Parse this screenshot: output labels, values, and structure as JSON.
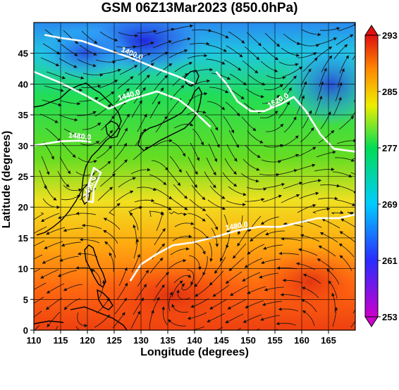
{
  "title": "GSM 06Z13Mar2023 (850.0hPa)",
  "chart_data": {
    "type": "map",
    "xlabel": "Longitude (degrees)",
    "ylabel": "Latitude  (degrees)",
    "xlim": [
      110,
      170
    ],
    "ylim": [
      0,
      50
    ],
    "x_ticks": [
      110,
      115,
      120,
      125,
      130,
      135,
      140,
      145,
      150,
      155,
      160,
      165
    ],
    "y_ticks": [
      0,
      5,
      10,
      15,
      20,
      25,
      30,
      35,
      40,
      45
    ],
    "colorbar": {
      "min": 253,
      "max": 293,
      "ticks": [
        253,
        261,
        269,
        277,
        285,
        293
      ],
      "stops": [
        "#cc00cc",
        "#2b2bff",
        "#00ccff",
        "#00dd55",
        "#eeee00",
        "#ff8800",
        "#e01010"
      ]
    },
    "contour_labels": [
      "1400.0",
      "1440.0",
      "1520.0",
      "1480.0",
      "1480.0",
      "1490.0"
    ],
    "contours": [
      {
        "label": "1400.0",
        "points": [
          [
            112,
            48
          ],
          [
            115,
            47.5
          ],
          [
            119,
            47
          ],
          [
            123,
            45.8
          ],
          [
            128,
            44.3
          ],
          [
            133,
            42.5
          ],
          [
            137,
            41.2
          ],
          [
            140,
            40
          ]
        ]
      },
      {
        "label": "1440.0",
        "points": [
          [
            110,
            42
          ],
          [
            115,
            40.2
          ],
          [
            120,
            38
          ],
          [
            124,
            36
          ],
          [
            128,
            37.5
          ],
          [
            133,
            38.8
          ],
          [
            137,
            37.5
          ],
          [
            140,
            35.5
          ],
          [
            143,
            33
          ]
        ]
      },
      {
        "label": "1520.0",
        "points": [
          [
            144,
            42
          ],
          [
            146,
            40
          ],
          [
            148,
            37.2
          ],
          [
            150.5,
            35.6
          ],
          [
            153,
            35.6
          ],
          [
            156,
            36.7
          ],
          [
            158.5,
            37.9
          ],
          [
            160.8,
            35.6
          ],
          [
            163.5,
            31.8
          ],
          [
            166,
            29.5
          ],
          [
            170,
            29
          ]
        ]
      },
      {
        "label": "1480.0",
        "points": [
          [
            110,
            30
          ],
          [
            115,
            30.7
          ],
          [
            118.5,
            30.8
          ],
          [
            120.7,
            30.6
          ]
        ]
      },
      {
        "label": "1480.0",
        "points": [
          [
            128,
            8
          ],
          [
            130,
            10.7
          ],
          [
            133,
            12.4
          ],
          [
            136,
            13.8
          ],
          [
            140,
            14.3
          ],
          [
            144,
            15.2
          ],
          [
            148,
            16.2
          ],
          [
            152,
            16.8
          ],
          [
            156,
            16.8
          ],
          [
            160,
            17.6
          ],
          [
            163,
            18.2
          ],
          [
            167,
            18.2
          ],
          [
            170,
            18.8
          ]
        ]
      },
      {
        "label": "1490.0",
        "points": [
          [
            120,
            23
          ],
          [
            119.8,
            21
          ],
          [
            121,
            20.8
          ],
          [
            121.2,
            23
          ],
          [
            122.5,
            25.6
          ],
          [
            121.2,
            26.4
          ],
          [
            120,
            23
          ]
        ]
      }
    ]
  }
}
